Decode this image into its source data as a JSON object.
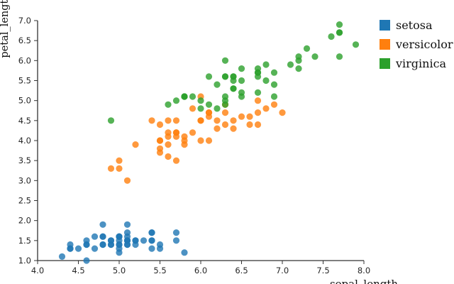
{
  "chart_data": {
    "type": "scatter",
    "title": "",
    "xlabel": "sepal_length",
    "ylabel": "petal_length",
    "xlim": [
      4.0,
      8.0
    ],
    "ylim": [
      1.0,
      7.0
    ],
    "x_tick_labels": [
      "4.0",
      "4.5",
      "5.0",
      "5.5",
      "6.0",
      "6.5",
      "7.0",
      "7.5",
      "8.0"
    ],
    "y_tick_labels": [
      "1.0",
      "1.5",
      "2.0",
      "2.5",
      "3.0",
      "3.5",
      "4.0",
      "4.5",
      "5.0",
      "5.5",
      "6.0",
      "6.5",
      "7.0"
    ],
    "grid": false,
    "legend_position": "top-right",
    "series": [
      {
        "name": "setosa",
        "color": "#1f77b4",
        "points": [
          [
            5.1,
            1.4
          ],
          [
            4.9,
            1.4
          ],
          [
            4.7,
            1.3
          ],
          [
            4.6,
            1.5
          ],
          [
            5.0,
            1.4
          ],
          [
            5.4,
            1.7
          ],
          [
            4.6,
            1.4
          ],
          [
            5.0,
            1.5
          ],
          [
            4.4,
            1.4
          ],
          [
            4.9,
            1.5
          ],
          [
            5.4,
            1.5
          ],
          [
            4.8,
            1.6
          ],
          [
            4.8,
            1.4
          ],
          [
            4.3,
            1.1
          ],
          [
            5.8,
            1.2
          ],
          [
            5.7,
            1.5
          ],
          [
            5.4,
            1.3
          ],
          [
            5.1,
            1.4
          ],
          [
            5.7,
            1.7
          ],
          [
            5.1,
            1.5
          ],
          [
            5.4,
            1.7
          ],
          [
            5.1,
            1.5
          ],
          [
            4.6,
            1.0
          ],
          [
            5.1,
            1.7
          ],
          [
            4.8,
            1.9
          ],
          [
            5.0,
            1.6
          ],
          [
            5.0,
            1.6
          ],
          [
            5.2,
            1.5
          ],
          [
            5.2,
            1.4
          ],
          [
            4.7,
            1.6
          ],
          [
            4.8,
            1.6
          ],
          [
            5.4,
            1.5
          ],
          [
            5.2,
            1.5
          ],
          [
            5.5,
            1.4
          ],
          [
            4.9,
            1.5
          ],
          [
            5.0,
            1.2
          ],
          [
            5.5,
            1.3
          ],
          [
            4.9,
            1.4
          ],
          [
            4.4,
            1.3
          ],
          [
            5.1,
            1.5
          ],
          [
            5.0,
            1.3
          ],
          [
            4.5,
            1.3
          ],
          [
            4.4,
            1.3
          ],
          [
            5.0,
            1.6
          ],
          [
            5.1,
            1.9
          ],
          [
            4.8,
            1.4
          ],
          [
            5.1,
            1.6
          ],
          [
            4.6,
            1.4
          ],
          [
            5.3,
            1.5
          ],
          [
            5.0,
            1.4
          ]
        ]
      },
      {
        "name": "versicolor",
        "color": "#ff7f0e",
        "points": [
          [
            7.0,
            4.7
          ],
          [
            6.4,
            4.5
          ],
          [
            6.9,
            4.9
          ],
          [
            5.5,
            4.0
          ],
          [
            6.5,
            4.6
          ],
          [
            5.7,
            4.5
          ],
          [
            6.3,
            4.7
          ],
          [
            4.9,
            3.3
          ],
          [
            6.6,
            4.6
          ],
          [
            5.2,
            3.9
          ],
          [
            5.0,
            3.5
          ],
          [
            5.9,
            4.2
          ],
          [
            6.0,
            4.0
          ],
          [
            6.1,
            4.7
          ],
          [
            5.6,
            3.6
          ],
          [
            6.7,
            4.4
          ],
          [
            5.6,
            4.5
          ],
          [
            5.8,
            4.1
          ],
          [
            6.2,
            4.5
          ],
          [
            5.6,
            3.9
          ],
          [
            5.9,
            4.8
          ],
          [
            6.1,
            4.0
          ],
          [
            6.3,
            4.9
          ],
          [
            6.1,
            4.7
          ],
          [
            6.4,
            4.3
          ],
          [
            6.6,
            4.4
          ],
          [
            6.8,
            4.8
          ],
          [
            6.7,
            5.0
          ],
          [
            6.0,
            4.5
          ],
          [
            5.7,
            3.5
          ],
          [
            5.5,
            3.8
          ],
          [
            5.5,
            3.7
          ],
          [
            5.8,
            3.9
          ],
          [
            6.0,
            5.1
          ],
          [
            5.4,
            4.5
          ],
          [
            6.0,
            4.5
          ],
          [
            6.7,
            4.7
          ],
          [
            6.3,
            4.4
          ],
          [
            5.6,
            4.1
          ],
          [
            5.5,
            4.0
          ],
          [
            5.5,
            4.4
          ],
          [
            6.1,
            4.6
          ],
          [
            5.8,
            4.0
          ],
          [
            5.0,
            3.3
          ],
          [
            5.6,
            4.2
          ],
          [
            5.7,
            4.2
          ],
          [
            5.7,
            4.2
          ],
          [
            6.2,
            4.3
          ],
          [
            5.1,
            3.0
          ],
          [
            5.7,
            4.1
          ]
        ]
      },
      {
        "name": "virginica",
        "color": "#2ca02c",
        "points": [
          [
            6.3,
            6.0
          ],
          [
            5.8,
            5.1
          ],
          [
            7.1,
            5.9
          ],
          [
            6.3,
            5.6
          ],
          [
            6.5,
            5.8
          ],
          [
            7.6,
            6.6
          ],
          [
            4.9,
            4.5
          ],
          [
            7.3,
            6.3
          ],
          [
            6.7,
            5.8
          ],
          [
            7.2,
            6.1
          ],
          [
            6.5,
            5.1
          ],
          [
            6.4,
            5.3
          ],
          [
            6.8,
            5.5
          ],
          [
            5.7,
            5.0
          ],
          [
            5.8,
            5.1
          ],
          [
            6.4,
            5.3
          ],
          [
            6.5,
            5.5
          ],
          [
            7.7,
            6.7
          ],
          [
            7.7,
            6.9
          ],
          [
            6.0,
            5.0
          ],
          [
            6.9,
            5.7
          ],
          [
            5.6,
            4.9
          ],
          [
            7.7,
            6.7
          ],
          [
            6.3,
            4.9
          ],
          [
            6.7,
            5.7
          ],
          [
            7.2,
            6.0
          ],
          [
            6.2,
            4.8
          ],
          [
            6.1,
            4.9
          ],
          [
            6.4,
            5.6
          ],
          [
            7.2,
            5.8
          ],
          [
            7.4,
            6.1
          ],
          [
            7.9,
            6.4
          ],
          [
            6.4,
            5.6
          ],
          [
            6.3,
            5.1
          ],
          [
            6.1,
            5.6
          ],
          [
            7.7,
            6.1
          ],
          [
            6.3,
            5.6
          ],
          [
            6.4,
            5.5
          ],
          [
            6.0,
            4.8
          ],
          [
            6.9,
            5.4
          ],
          [
            6.7,
            5.6
          ],
          [
            6.9,
            5.1
          ],
          [
            5.8,
            5.1
          ],
          [
            6.8,
            5.9
          ],
          [
            6.7,
            5.7
          ],
          [
            6.7,
            5.2
          ],
          [
            6.3,
            5.0
          ],
          [
            6.5,
            5.2
          ],
          [
            6.2,
            5.4
          ],
          [
            5.9,
            5.1
          ]
        ]
      }
    ],
    "legend": {
      "items": [
        {
          "label": "setosa",
          "color": "#1f77b4"
        },
        {
          "label": "versicolor",
          "color": "#ff7f0e"
        },
        {
          "label": "virginica",
          "color": "#2ca02c"
        }
      ]
    }
  }
}
